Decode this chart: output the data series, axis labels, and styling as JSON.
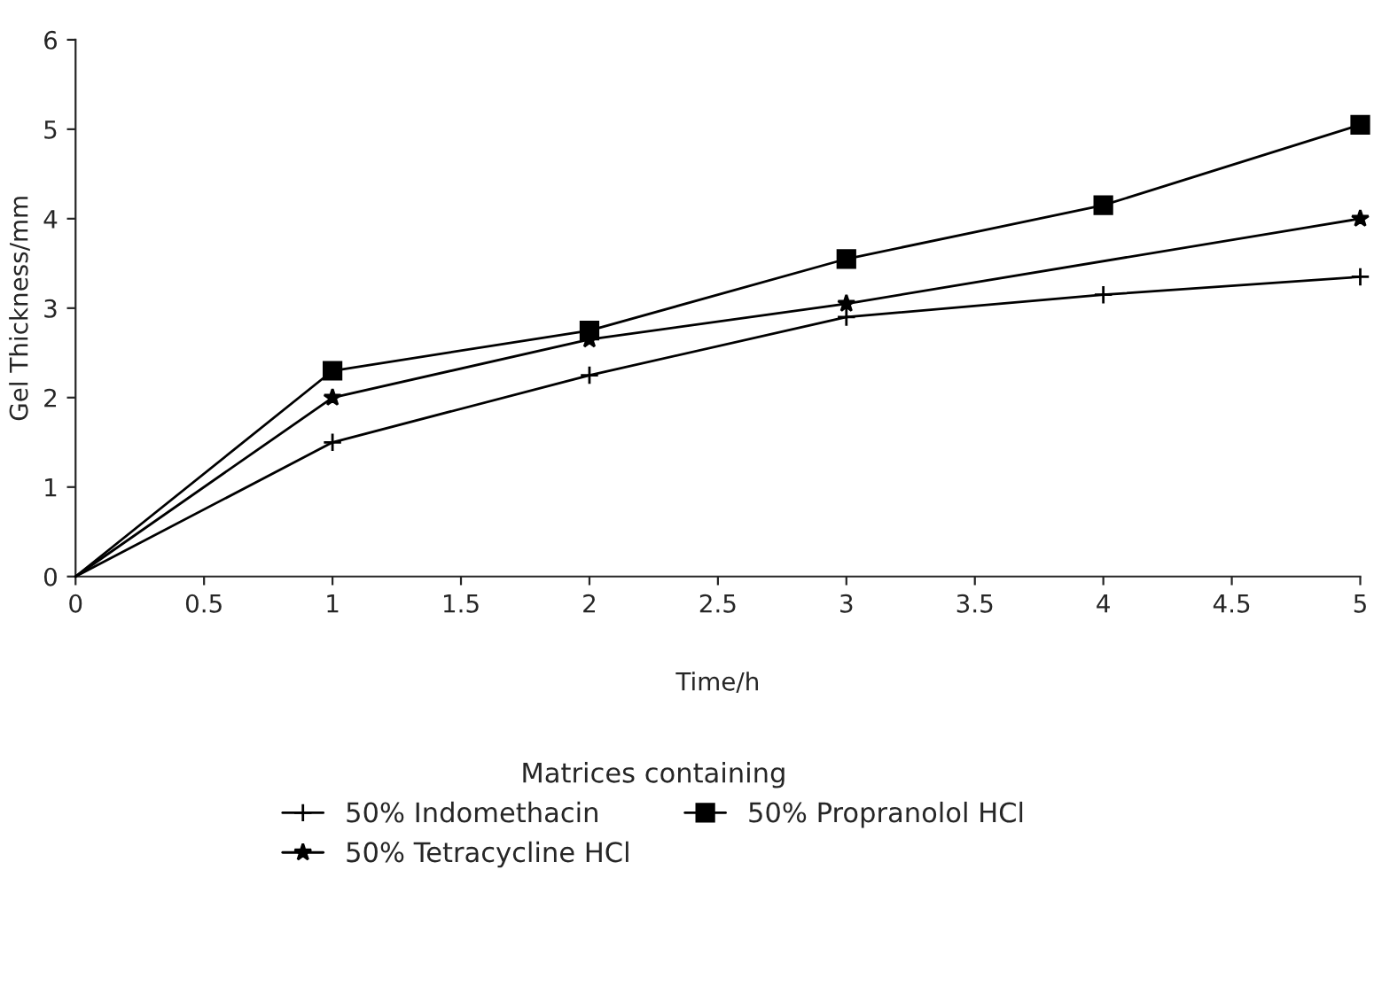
{
  "chart_data": {
    "type": "line",
    "xlabel": "Time/h",
    "ylabel": "Gel Thickness/mm",
    "legend_title": "Matrices containing",
    "legend": "bottom",
    "grid": false,
    "xlim": [
      0,
      5
    ],
    "xticks": [
      0,
      0.5,
      1,
      1.5,
      2,
      2.5,
      3,
      3.5,
      4,
      4.5,
      5
    ],
    "ylim": [
      0,
      6
    ],
    "yticks": [
      0,
      1,
      2,
      3,
      4,
      5,
      6
    ],
    "series": [
      {
        "name": "50% Indomethacin",
        "color": "#000000",
        "marker": "cross",
        "x": [
          0,
          1,
          2,
          3,
          4,
          5
        ],
        "values": [
          0,
          1.5,
          2.25,
          2.9,
          3.15,
          3.35
        ]
      },
      {
        "name": "50% Tetracycline HCl",
        "color": "#000000",
        "marker": "star",
        "x": [
          0,
          1,
          2,
          3,
          5
        ],
        "values": [
          0,
          2.0,
          2.65,
          3.05,
          4.0
        ]
      },
      {
        "name": "50% Propranolol HCl",
        "color": "#000000",
        "marker": "square",
        "x": [
          0,
          1,
          2,
          3,
          4,
          5
        ],
        "values": [
          0,
          2.3,
          2.75,
          3.55,
          4.15,
          5.05
        ]
      }
    ]
  }
}
